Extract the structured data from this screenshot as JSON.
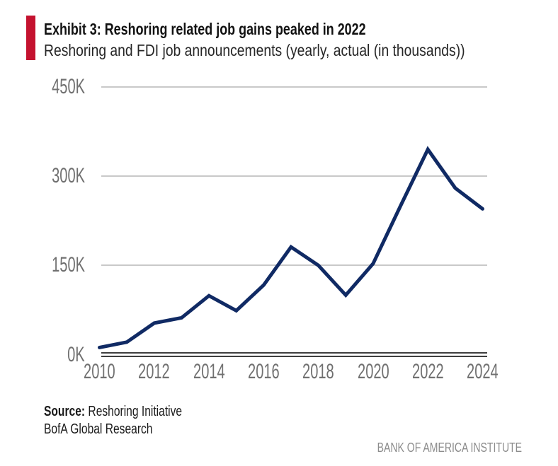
{
  "header": {
    "exhibit_title": "Exhibit 3: Reshoring related job gains peaked in 2022",
    "subtitle": "Reshoring and FDI job announcements (yearly, actual (in thousands))"
  },
  "chart_data": {
    "type": "line",
    "title": "Exhibit 3: Reshoring related job gains peaked in 2022",
    "subtitle": "Reshoring and FDI job announcements (yearly, actual (in thousands))",
    "x": [
      2010,
      2011,
      2012,
      2013,
      2014,
      2015,
      2016,
      2017,
      2018,
      2019,
      2020,
      2021,
      2022,
      2023,
      2024
    ],
    "series": [
      {
        "name": "Reshoring and FDI job announcements",
        "unit": "thousands of jobs",
        "values": [
          12,
          21,
          53,
          62,
          99,
          74,
          117,
          181,
          150,
          100,
          153,
          250,
          345,
          280,
          245
        ]
      }
    ],
    "ylim": [
      0,
      450
    ],
    "xlabel": "",
    "ylabel": "",
    "grid": "horizontal",
    "legend": "none",
    "yticks": [
      {
        "value": 450,
        "label": "450K"
      },
      {
        "value": 300,
        "label": "300K"
      },
      {
        "value": 150,
        "label": "150K"
      },
      {
        "value": 0,
        "label": "0K"
      }
    ],
    "xticks": [
      {
        "year": 2010,
        "label": "2010"
      },
      {
        "year": 2012,
        "label": "2012"
      },
      {
        "year": 2014,
        "label": "2014"
      },
      {
        "year": 2016,
        "label": "2016"
      },
      {
        "year": 2018,
        "label": "2018"
      },
      {
        "year": 2020,
        "label": "2020"
      },
      {
        "year": 2022,
        "label": "2022"
      },
      {
        "year": 2024,
        "label": "2024"
      }
    ],
    "colors": {
      "line": "#102A64",
      "gridline": "#C9C9C9",
      "axis": "#3E3E3E",
      "tick_text": "#707070",
      "accent_red": "#C4122F"
    }
  },
  "footer": {
    "source_label": "Source:",
    "source_value": "Reshoring Initiative",
    "research_line": "BofA Global Research",
    "institute": "BANK OF AMERICA INSTITUTE"
  }
}
